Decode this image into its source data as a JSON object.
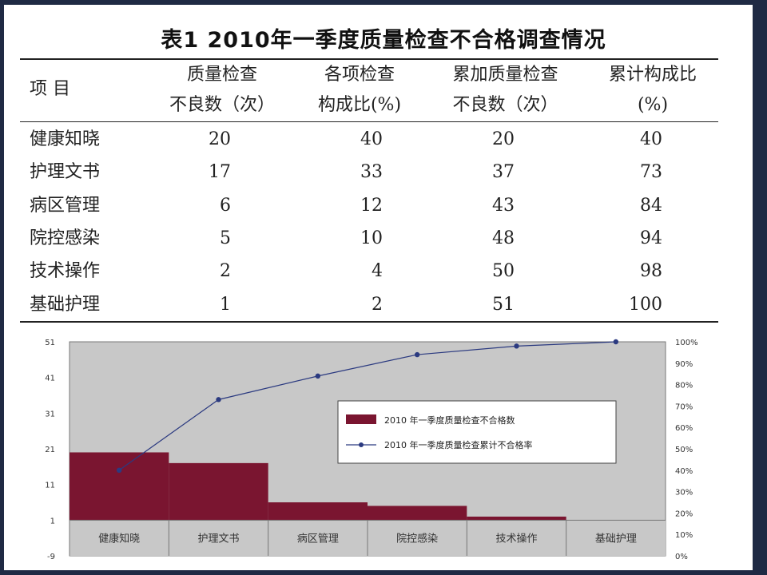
{
  "title": "表1  2010年一季度质量检查不合格调查情况",
  "table": {
    "headers": [
      {
        "line1": "项  目",
        "line2": ""
      },
      {
        "line1": "质量检查",
        "line2": "不良数（次）"
      },
      {
        "line1": "各项检查",
        "line2": "构成比(%)"
      },
      {
        "line1": "累加质量检查",
        "line2": "不良数（次）"
      },
      {
        "line1": "累计构成比",
        "line2": "(%)"
      }
    ],
    "rows": [
      {
        "item": "健康知晓",
        "count": "20",
        "ratio": "40",
        "cum_count": "20",
        "cum_ratio": "40"
      },
      {
        "item": "护理文书",
        "count": "17",
        "ratio": "33",
        "cum_count": "37",
        "cum_ratio": "73"
      },
      {
        "item": "病区管理",
        "count": "6",
        "ratio": "12",
        "cum_count": "43",
        "cum_ratio": "84"
      },
      {
        "item": "院控感染",
        "count": "5",
        "ratio": "10",
        "cum_count": "48",
        "cum_ratio": "94"
      },
      {
        "item": "技术操作",
        "count": "2",
        "ratio": "4",
        "cum_count": "50",
        "cum_ratio": "98"
      },
      {
        "item": "基础护理",
        "count": "1",
        "ratio": "2",
        "cum_count": "51",
        "cum_ratio": "100"
      }
    ]
  },
  "chart_data": {
    "type": "bar",
    "categories": [
      "健康知晓",
      "护理文书",
      "病区管理",
      "院控感染",
      "技术操作",
      "基础护理"
    ],
    "series": [
      {
        "name": "2010 年一季度质量检查不合格数",
        "type": "bar",
        "axis": "left",
        "values": [
          20,
          17,
          6,
          5,
          2,
          1
        ]
      },
      {
        "name": "2010 年一季度质量检查累计不合格率",
        "type": "line",
        "axis": "right",
        "values": [
          40,
          73,
          84,
          94,
          98,
          100
        ]
      }
    ],
    "y_left": {
      "ticks": [
        "-9",
        "1",
        "11",
        "21",
        "31",
        "41",
        "51"
      ],
      "range": [
        -9,
        51
      ]
    },
    "y_right": {
      "ticks": [
        "0%",
        "10%",
        "20%",
        "30%",
        "40%",
        "50%",
        "60%",
        "70%",
        "80%",
        "90%",
        "100%"
      ],
      "range": [
        0,
        100
      ]
    },
    "legend_position": "right-center",
    "bar_color": "#7a1530",
    "line_color": "#2b3a80",
    "plot_bg": "#c8c8c8"
  }
}
